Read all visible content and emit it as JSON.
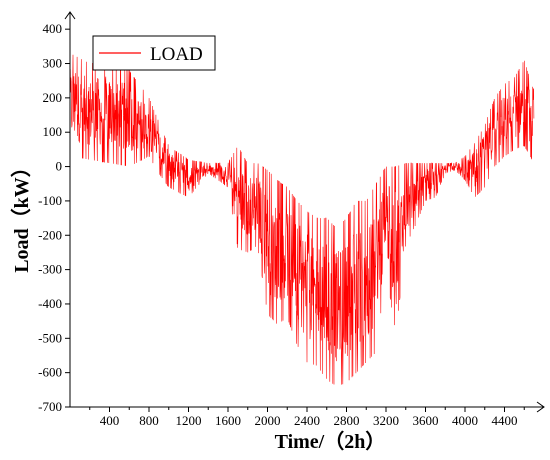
{
  "chart_data": {
    "type": "line",
    "xlabel": "Time/（2h）",
    "ylabel": "Load（kW）",
    "xlim": [
      0,
      4800
    ],
    "ylim": [
      -700,
      450
    ],
    "xticks": [
      400,
      800,
      1200,
      1600,
      2000,
      2400,
      2800,
      3200,
      3600,
      4000,
      4400
    ],
    "yticks": [
      -700,
      -600,
      -500,
      -400,
      -300,
      -200,
      -100,
      0,
      100,
      200,
      300,
      400
    ],
    "legend": "top-left",
    "grid": false,
    "series": [
      {
        "name": "LOAD",
        "color": "#ff0000",
        "envelope": [
          {
            "x": 0,
            "lo": 30,
            "hi": 330
          },
          {
            "x": 200,
            "lo": 20,
            "hi": 300
          },
          {
            "x": 400,
            "lo": 10,
            "hi": 310
          },
          {
            "x": 600,
            "lo": 0,
            "hi": 280
          },
          {
            "x": 800,
            "lo": 30,
            "hi": 200
          },
          {
            "x": 900,
            "lo": -20,
            "hi": 130
          },
          {
            "x": 1000,
            "lo": -60,
            "hi": 60
          },
          {
            "x": 1200,
            "lo": -90,
            "hi": 20
          },
          {
            "x": 1400,
            "lo": -20,
            "hi": 10
          },
          {
            "x": 1600,
            "lo": -60,
            "hi": 10
          },
          {
            "x": 1700,
            "lo": -240,
            "hi": 60
          },
          {
            "x": 1800,
            "lo": -250,
            "hi": 10
          },
          {
            "x": 1900,
            "lo": -230,
            "hi": 10
          },
          {
            "x": 2000,
            "lo": -430,
            "hi": -10
          },
          {
            "x": 2100,
            "lo": -460,
            "hi": -40
          },
          {
            "x": 2200,
            "lo": -440,
            "hi": -60
          },
          {
            "x": 2300,
            "lo": -520,
            "hi": -100
          },
          {
            "x": 2400,
            "lo": -570,
            "hi": -130
          },
          {
            "x": 2500,
            "lo": -580,
            "hi": -150
          },
          {
            "x": 2600,
            "lo": -620,
            "hi": -150
          },
          {
            "x": 2700,
            "lo": -640,
            "hi": -180
          },
          {
            "x": 2800,
            "lo": -630,
            "hi": -150
          },
          {
            "x": 2900,
            "lo": -600,
            "hi": -100
          },
          {
            "x": 3000,
            "lo": -570,
            "hi": -100
          },
          {
            "x": 3100,
            "lo": -540,
            "hi": -50
          },
          {
            "x": 3200,
            "lo": -300,
            "hi": 0
          },
          {
            "x": 3300,
            "lo": -490,
            "hi": 0
          },
          {
            "x": 3400,
            "lo": -230,
            "hi": 10
          },
          {
            "x": 3500,
            "lo": -170,
            "hi": 10
          },
          {
            "x": 3600,
            "lo": -100,
            "hi": 10
          },
          {
            "x": 3700,
            "lo": -90,
            "hi": 10
          },
          {
            "x": 3800,
            "lo": -20,
            "hi": 10
          },
          {
            "x": 3900,
            "lo": -10,
            "hi": 10
          },
          {
            "x": 4000,
            "lo": -40,
            "hi": 30
          },
          {
            "x": 4100,
            "lo": -90,
            "hi": 70
          },
          {
            "x": 4200,
            "lo": -60,
            "hi": 120
          },
          {
            "x": 4300,
            "lo": 0,
            "hi": 200
          },
          {
            "x": 4400,
            "lo": 30,
            "hi": 240
          },
          {
            "x": 4500,
            "lo": 50,
            "hi": 260
          },
          {
            "x": 4600,
            "lo": 60,
            "hi": 310
          },
          {
            "x": 4700,
            "lo": 10,
            "hi": 220
          }
        ]
      }
    ]
  }
}
